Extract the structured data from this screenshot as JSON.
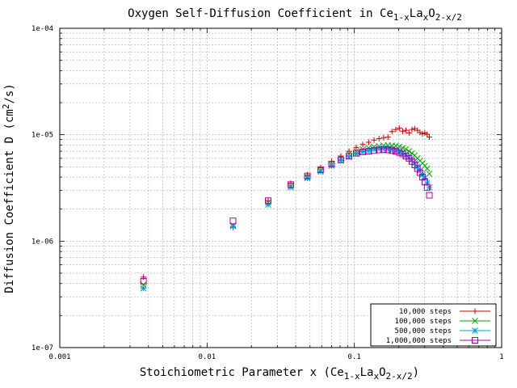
{
  "chart_data": {
    "type": "scatter",
    "title": {
      "main": "Oxygen Self-Diffusion Coefficient in Ce",
      "sub1": "1-x",
      "mid1": "La",
      "sub2": "x",
      "mid2": "O",
      "sub3": "2-x/2"
    },
    "xlabel": {
      "main": "Stoichiometric Parameter x  (Ce",
      "sub1": "1-x",
      "mid1": "La",
      "sub2": "x",
      "mid2": "O",
      "sub3": "2-x/2",
      "end": ")"
    },
    "ylabel": {
      "main": "Diffusion Coefficient D (cm",
      "sup": "2",
      "end": "/s)"
    },
    "x_scale": "log",
    "y_scale": "log",
    "xlim": [
      0.001,
      1
    ],
    "ylim": [
      1e-07,
      0.0001
    ],
    "grid": true,
    "x_ticks": [
      {
        "value": 0.001,
        "label": "0.001"
      },
      {
        "value": 0.01,
        "label": "0.01"
      },
      {
        "value": 0.1,
        "label": "0.1"
      },
      {
        "value": 1,
        "label": "1"
      }
    ],
    "y_ticks": [
      {
        "value": 1e-07,
        "label": "1e-07"
      },
      {
        "value": 1e-06,
        "label": "1e-06"
      },
      {
        "value": 1e-05,
        "label": "1e-05"
      },
      {
        "value": 0.0001,
        "label": "1e-04"
      }
    ],
    "legend_position": "bottom-right",
    "series": [
      {
        "name": "10,000 steps",
        "color": "#cc0000",
        "marker": "plus",
        "x": [
          0.0037,
          0.015,
          0.026,
          0.037,
          0.048,
          0.059,
          0.07,
          0.081,
          0.092,
          0.103,
          0.114,
          0.125,
          0.136,
          0.147,
          0.158,
          0.169,
          0.18,
          0.191,
          0.202,
          0.213,
          0.224,
          0.235,
          0.246,
          0.257,
          0.268,
          0.279,
          0.29,
          0.301,
          0.312,
          0.323
        ],
        "y": [
          4.6e-07,
          1.35e-06,
          2.4e-06,
          3.5e-06,
          4.2e-06,
          4.9e-06,
          5.6e-06,
          6.3e-06,
          7e-06,
          7.6e-06,
          8.1e-06,
          8.5e-06,
          8.9e-06,
          9.2e-06,
          9.4e-06,
          9.5e-06,
          1.07e-05,
          1.12e-05,
          1.15e-05,
          1.08e-05,
          1.1e-05,
          1.04e-05,
          1.12e-05,
          1.14e-05,
          1.1e-05,
          1.05e-05,
          1.02e-05,
          1.04e-05,
          1.01e-05,
          9.5e-06
        ]
      },
      {
        "name": "100,000 steps",
        "color": "#00aa00",
        "marker": "cross",
        "x": [
          0.0037,
          0.015,
          0.026,
          0.037,
          0.048,
          0.059,
          0.07,
          0.081,
          0.092,
          0.103,
          0.114,
          0.125,
          0.136,
          0.147,
          0.158,
          0.169,
          0.18,
          0.191,
          0.202,
          0.213,
          0.224,
          0.235,
          0.246,
          0.257,
          0.268,
          0.279,
          0.29,
          0.301,
          0.312,
          0.323
        ],
        "y": [
          3.9e-07,
          1.4e-06,
          2.3e-06,
          3.3e-06,
          4e-06,
          4.6e-06,
          5.3e-06,
          6e-06,
          6.6e-06,
          7e-06,
          7.3e-06,
          7.5e-06,
          7.7e-06,
          7.8e-06,
          7.9e-06,
          7.95e-06,
          7.9e-06,
          7.85e-06,
          7.7e-06,
          7.5e-06,
          7.3e-06,
          7e-06,
          6.7e-06,
          6.4e-06,
          6e-06,
          5.7e-06,
          5.4e-06,
          5.1e-06,
          4.8e-06,
          4.3e-06
        ]
      },
      {
        "name": "500,000 steps",
        "color": "#0099dd",
        "marker": "star",
        "x": [
          0.0037,
          0.015,
          0.026,
          0.037,
          0.048,
          0.059,
          0.07,
          0.081,
          0.092,
          0.103,
          0.114,
          0.125,
          0.136,
          0.147,
          0.158,
          0.169,
          0.18,
          0.191,
          0.202,
          0.213,
          0.224,
          0.235,
          0.246,
          0.257,
          0.268,
          0.279,
          0.29,
          0.301,
          0.312,
          0.323
        ],
        "y": [
          3.6e-07,
          1.38e-06,
          2.2e-06,
          3.2e-06,
          3.9e-06,
          4.5e-06,
          5.1e-06,
          5.7e-06,
          6.2e-06,
          6.6e-06,
          6.9e-06,
          7.1e-06,
          7.3e-06,
          7.4e-06,
          7.45e-06,
          7.4e-06,
          7.3e-06,
          7.15e-06,
          6.9e-06,
          6.7e-06,
          6.4e-06,
          6.1e-06,
          5.8e-06,
          5.4e-06,
          5e-06,
          4.6e-06,
          4.2e-06,
          3.9e-06,
          3.5e-06,
          3.2e-06
        ]
      },
      {
        "name": "1,000,000 steps",
        "color": "#aa00aa",
        "marker": "square",
        "x": [
          0.0037,
          0.015,
          0.026,
          0.037,
          0.048,
          0.059,
          0.07,
          0.081,
          0.092,
          0.103,
          0.114,
          0.125,
          0.136,
          0.147,
          0.158,
          0.169,
          0.18,
          0.191,
          0.202,
          0.213,
          0.224,
          0.235,
          0.246,
          0.257,
          0.268,
          0.279,
          0.29,
          0.301,
          0.312,
          0.323
        ],
        "y": [
          4.2e-07,
          1.55e-06,
          2.4e-06,
          3.4e-06,
          4.1e-06,
          4.7e-06,
          5.3e-06,
          5.8e-06,
          6.3e-06,
          6.7e-06,
          6.9e-06,
          7e-06,
          7.1e-06,
          7.2e-06,
          7.25e-06,
          7.2e-06,
          7.1e-06,
          7e-06,
          6.8e-06,
          6.6e-06,
          6.3e-06,
          6e-06,
          5.6e-06,
          5.2e-06,
          4.8e-06,
          4.4e-06,
          4e-06,
          3.6e-06,
          3.2e-06,
          2.7e-06
        ]
      }
    ]
  }
}
